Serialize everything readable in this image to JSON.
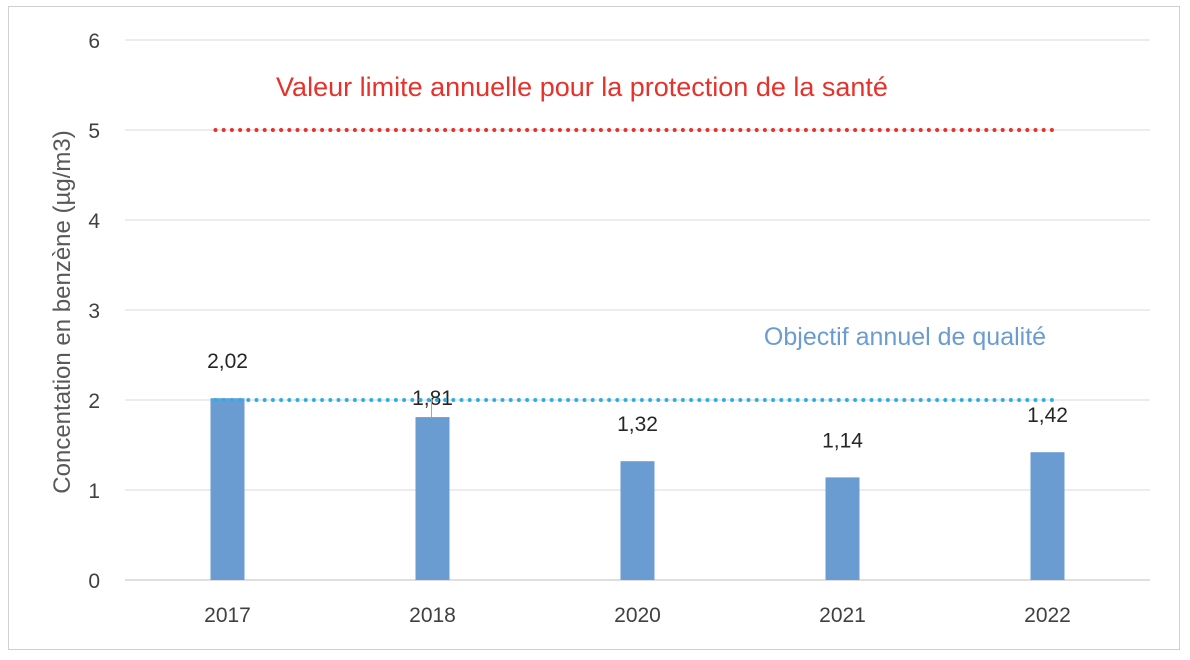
{
  "chart_data": {
    "type": "bar",
    "categories": [
      "2017",
      "2018",
      "2020",
      "2021",
      "2022"
    ],
    "series": [
      {
        "values": [
          2.02,
          1.81,
          1.32,
          1.14,
          1.42
        ],
        "value_labels": [
          "2,02",
          "1,81",
          "1,32",
          "1,14",
          "1,42"
        ],
        "color": "#6a9bd1"
      }
    ],
    "ylabel": "Concentation en benzène (µg/m3)",
    "xlabel": "",
    "title": "",
    "ylim": [
      0,
      6
    ],
    "yticks": [
      0,
      1,
      2,
      3,
      4,
      5,
      6
    ],
    "grid": true,
    "reference_lines": [
      {
        "value": 5,
        "label": "Valeur limite annuelle pour la protection de la santé",
        "color": "#e8312a",
        "style": "dotted"
      },
      {
        "value": 2,
        "label": "Objectif annuel de qualité",
        "color": "#2eaee8",
        "label_color": "#6a9bd1",
        "style": "dotted"
      }
    ]
  }
}
